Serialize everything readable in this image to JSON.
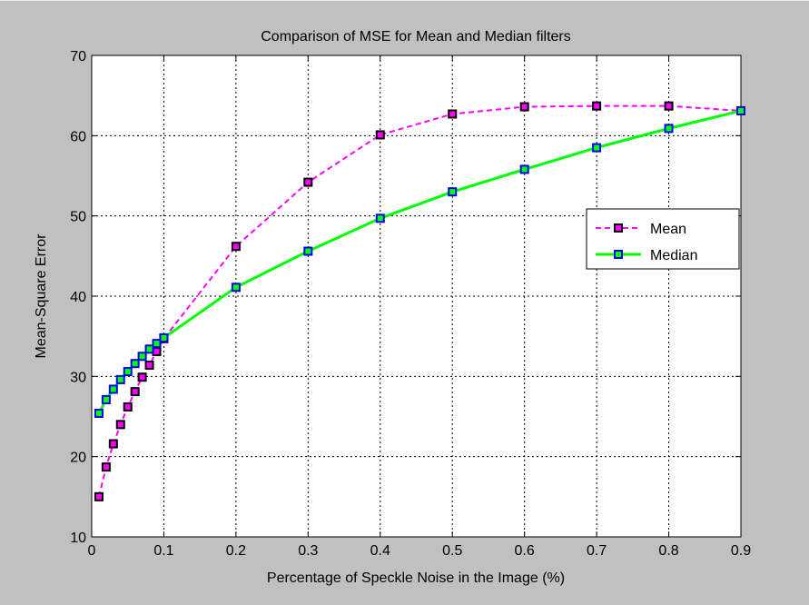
{
  "chart_data": {
    "type": "line",
    "title": "Comparison of MSE for Mean and Median filters",
    "xlabel": "Percentage of Speckle Noise in the Image (%)",
    "ylabel": "Mean-Square Error",
    "xlim": [
      0,
      0.9
    ],
    "ylim": [
      10,
      70
    ],
    "xticks": [
      0,
      0.1,
      0.2,
      0.3,
      0.4,
      0.5,
      0.6,
      0.7,
      0.8,
      0.9
    ],
    "xtick_labels": [
      "0",
      "0.1",
      "0.2",
      "0.3",
      "0.4",
      "0.5",
      "0.6",
      "0.7",
      "0.8",
      "0.9"
    ],
    "yticks": [
      10,
      20,
      30,
      40,
      50,
      60,
      70
    ],
    "ytick_labels": [
      "10",
      "20",
      "30",
      "40",
      "50",
      "60",
      "70"
    ],
    "grid": true,
    "legend_position": "right",
    "series": [
      {
        "name": "Mean",
        "color": "#ff00ff",
        "marker_color": "#000000",
        "line_style": "dashed",
        "x": [
          0.01,
          0.02,
          0.03,
          0.04,
          0.05,
          0.06,
          0.07,
          0.08,
          0.09,
          0.1,
          0.2,
          0.3,
          0.4,
          0.5,
          0.6,
          0.7,
          0.8,
          0.9
        ],
        "y": [
          15.0,
          18.7,
          21.6,
          24.0,
          26.2,
          28.1,
          29.9,
          31.4,
          33.1,
          34.7,
          46.2,
          54.2,
          60.1,
          62.7,
          63.6,
          63.7,
          63.7,
          63.1
        ]
      },
      {
        "name": "Median",
        "color": "#00ff00",
        "marker_color": "#0000ff",
        "line_style": "solid",
        "x": [
          0.01,
          0.02,
          0.03,
          0.04,
          0.05,
          0.06,
          0.07,
          0.08,
          0.09,
          0.1,
          0.2,
          0.3,
          0.4,
          0.5,
          0.6,
          0.7,
          0.8,
          0.9
        ],
        "y": [
          25.4,
          27.1,
          28.4,
          29.6,
          30.6,
          31.6,
          32.5,
          33.4,
          34.1,
          34.8,
          41.1,
          45.6,
          49.7,
          53.0,
          55.8,
          58.5,
          60.9,
          63.1
        ]
      }
    ]
  }
}
